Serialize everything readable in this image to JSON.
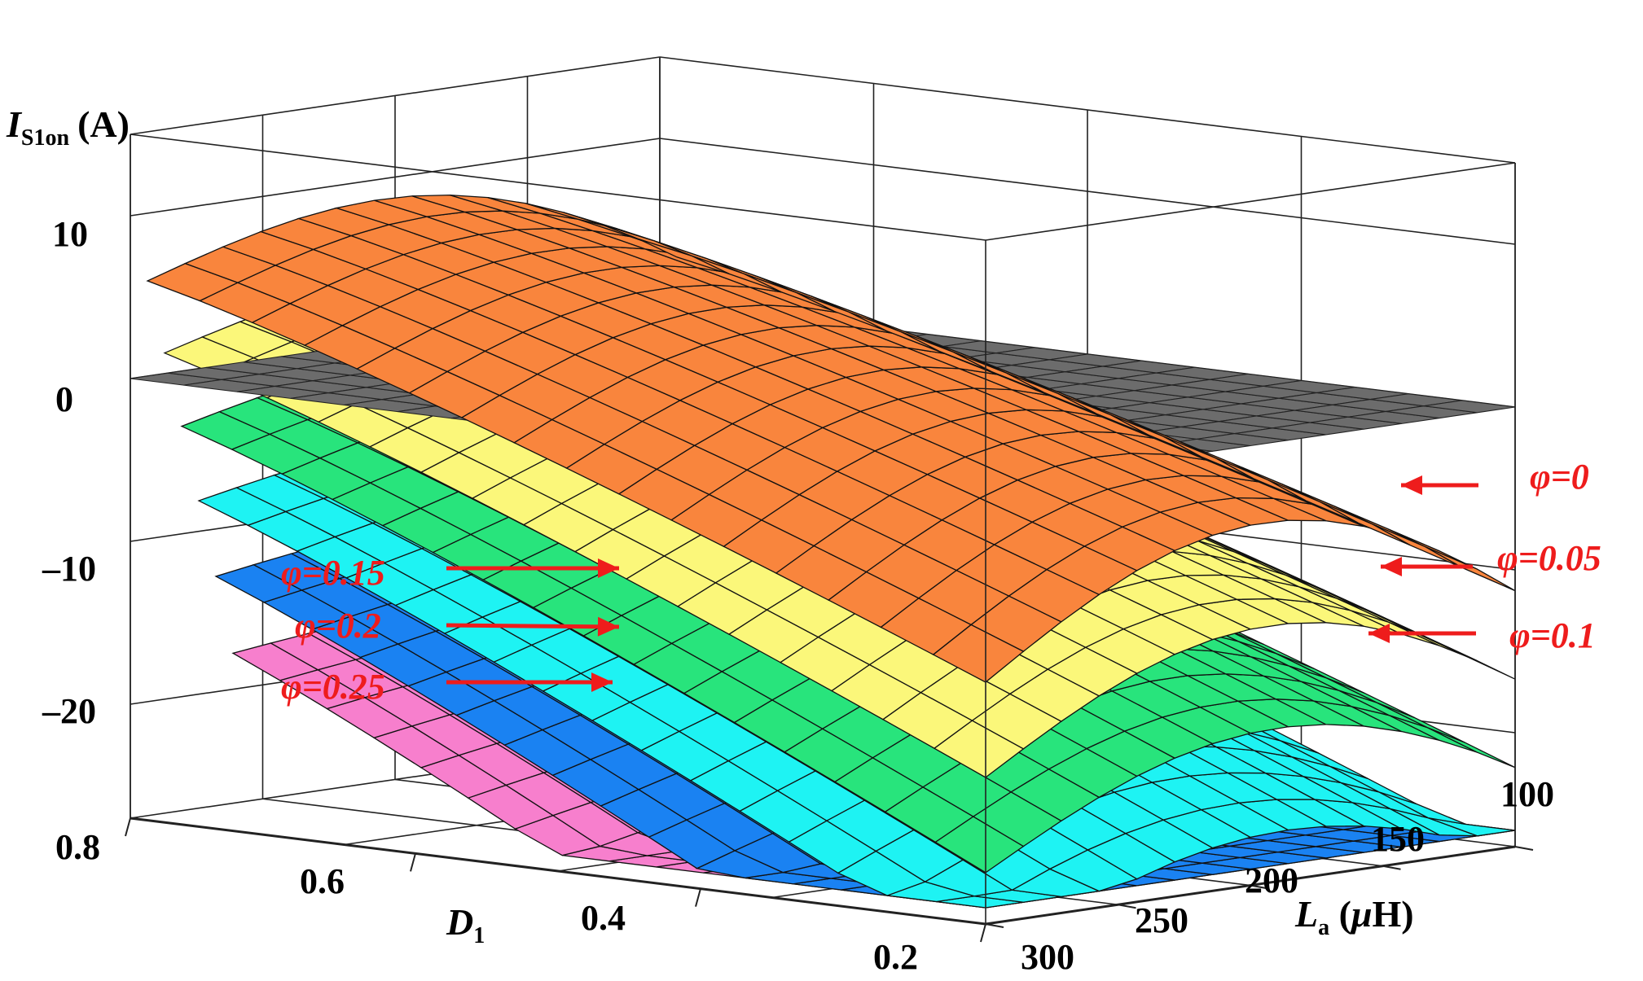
{
  "chart_data": {
    "type": "surface3d",
    "title": "",
    "zlabel": {
      "symbol": "I",
      "subscript": "S1on",
      "unit": "(A)"
    },
    "xlabel": {
      "symbol": "D",
      "subscript": "1"
    },
    "ylabel": {
      "symbol": "L",
      "subscript": "a",
      "unit_prefix": " (",
      "unit_mu": "μ",
      "unit_suffix": "H)"
    },
    "zticks": [
      "10",
      "0",
      "–10",
      "–20"
    ],
    "xticks": [
      "0.8",
      "0.6",
      "0.4",
      "0.2"
    ],
    "yticks": [
      "100",
      "150",
      "200",
      "250",
      "300"
    ],
    "xlim": [
      0.1,
      0.8
    ],
    "ylim": [
      100,
      300
    ],
    "zlim": [
      -27,
      15
    ],
    "grid": true,
    "series": [
      {
        "name": "φ=0",
        "phi": 0,
        "color": "#f9853d",
        "label_text": "φ=0"
      },
      {
        "name": "φ=0.05",
        "phi": 0.05,
        "color": "#fbf77a",
        "label_text": "φ=0.05"
      },
      {
        "name": "φ=0.1",
        "phi": 0.1,
        "color": "#28e47c",
        "label_text": "φ=0.1"
      },
      {
        "name": "φ=0.15",
        "phi": 0.15,
        "color": "#1ef3f3",
        "label_text": "φ=0.15"
      },
      {
        "name": "φ=0.2",
        "phi": 0.2,
        "color": "#1a82f2",
        "label_text": "φ=0.2"
      },
      {
        "name": "φ=0.25",
        "phi": 0.25,
        "color": "#f77fcd",
        "label_text": "φ=0.25"
      }
    ],
    "zero_plane": {
      "z": 0,
      "color": "#6c6c6c"
    },
    "annotation_color": "#ee1c1c"
  }
}
